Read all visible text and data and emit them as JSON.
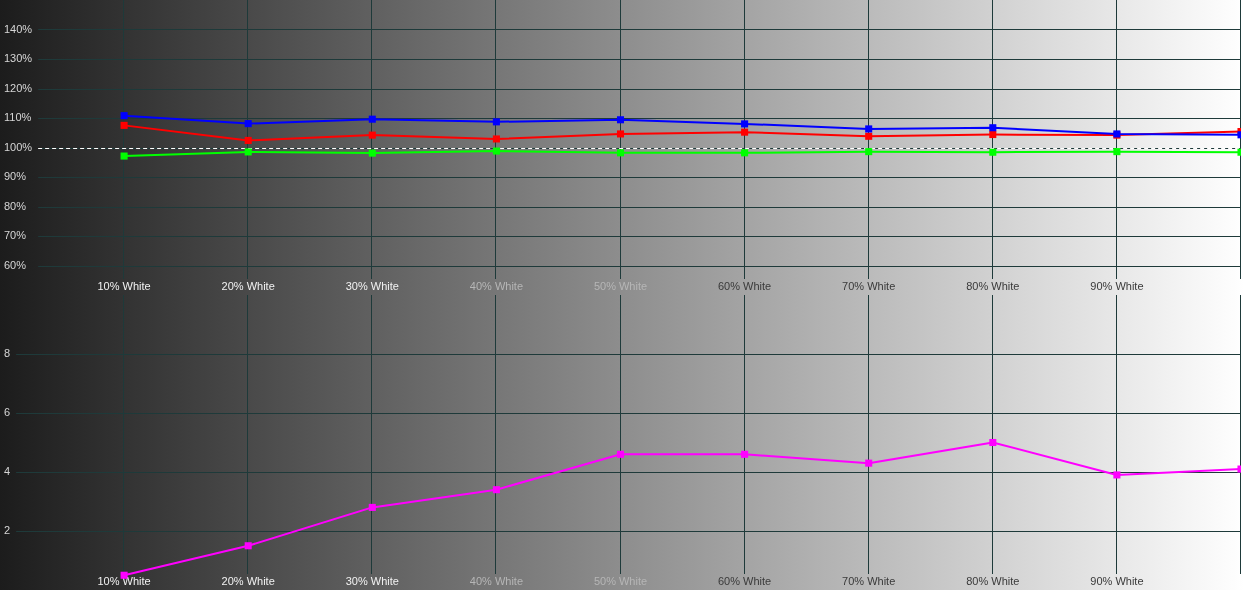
{
  "chart_data": [
    {
      "type": "line",
      "x": [
        10,
        20,
        30,
        40,
        50,
        60,
        70,
        80,
        90,
        100
      ],
      "xlim": [
        0,
        100
      ],
      "xticks": [
        {
          "value": 10,
          "label": "10% White"
        },
        {
          "value": 20,
          "label": "20% White"
        },
        {
          "value": 30,
          "label": "30% White"
        },
        {
          "value": 40,
          "label": "40% White"
        },
        {
          "value": 50,
          "label": "50% White"
        },
        {
          "value": 60,
          "label": "60% White"
        },
        {
          "value": 70,
          "label": "70% White"
        },
        {
          "value": 80,
          "label": "80% White"
        },
        {
          "value": 90,
          "label": "90% White"
        },
        {
          "value": 100,
          "label": null
        }
      ],
      "ylim": [
        50,
        150
      ],
      "yticks": [
        {
          "value": 60,
          "label": "60%"
        },
        {
          "value": 70,
          "label": "70%"
        },
        {
          "value": 80,
          "label": "80%"
        },
        {
          "value": 90,
          "label": "90%"
        },
        {
          "value": 100,
          "label": "100%"
        },
        {
          "value": 110,
          "label": "110%"
        },
        {
          "value": 120,
          "label": "120%"
        },
        {
          "value": 130,
          "label": "130%"
        },
        {
          "value": 140,
          "label": "140%"
        }
      ],
      "grid": true,
      "marker": "square",
      "series": [
        {
          "color": "#ff0000",
          "values": [
            107.5,
            102.4,
            104.2,
            102.9,
            104.6,
            105.2,
            103.8,
            104.4,
            104.2,
            105.4
          ]
        },
        {
          "color": "#00ff00",
          "values": [
            97.1,
            98.5,
            98.1,
            98.8,
            98.2,
            98.2,
            98.6,
            98.4,
            98.6,
            98.4
          ]
        },
        {
          "color": "#0000ff",
          "values": [
            110.8,
            108.1,
            109.6,
            108.7,
            109.4,
            108.0,
            106.3,
            106.7,
            104.6,
            104.3
          ]
        }
      ],
      "ref_lines": [
        {
          "axis": "y",
          "value": 100,
          "line_style": "dashed",
          "color": "#ffffff"
        }
      ]
    },
    {
      "type": "line",
      "x": [
        10,
        20,
        30,
        40,
        50,
        60,
        70,
        80,
        90,
        100
      ],
      "xlim": [
        0,
        100
      ],
      "xticks": [
        {
          "value": 10,
          "label": "10% White"
        },
        {
          "value": 20,
          "label": "20% White"
        },
        {
          "value": 30,
          "label": "30% White"
        },
        {
          "value": 40,
          "label": "40% White"
        },
        {
          "value": 50,
          "label": "50% White"
        },
        {
          "value": 60,
          "label": "60% White"
        },
        {
          "value": 70,
          "label": "70% White"
        },
        {
          "value": 80,
          "label": "80% White"
        },
        {
          "value": 90,
          "label": "90% White"
        },
        {
          "value": 100,
          "label": null
        }
      ],
      "ylim": [
        0,
        10
      ],
      "yticks": [
        2,
        4,
        6,
        8
      ],
      "grid": true,
      "marker": "square",
      "series": [
        {
          "color": "#ff00ff",
          "values": [
            0.5,
            1.5,
            2.8,
            3.4,
            4.6,
            4.6,
            4.3,
            5.0,
            3.9,
            4.1
          ]
        }
      ]
    }
  ]
}
